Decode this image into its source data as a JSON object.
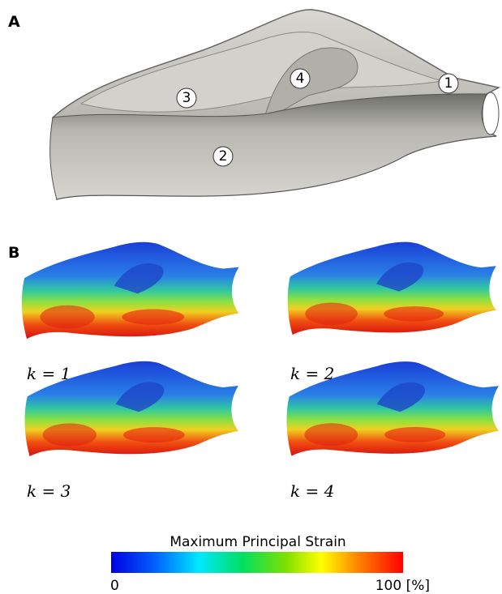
{
  "panels": {
    "a": {
      "label": "A",
      "regions": [
        "1",
        "2",
        "3",
        "4"
      ]
    },
    "b": {
      "label": "B",
      "captions": [
        "k = 1",
        "k = 2",
        "k = 3",
        "k = 4"
      ]
    }
  },
  "colorbar": {
    "title": "Maximum Principal Strain",
    "min_label": "0",
    "max_label": "100 [%]"
  }
}
